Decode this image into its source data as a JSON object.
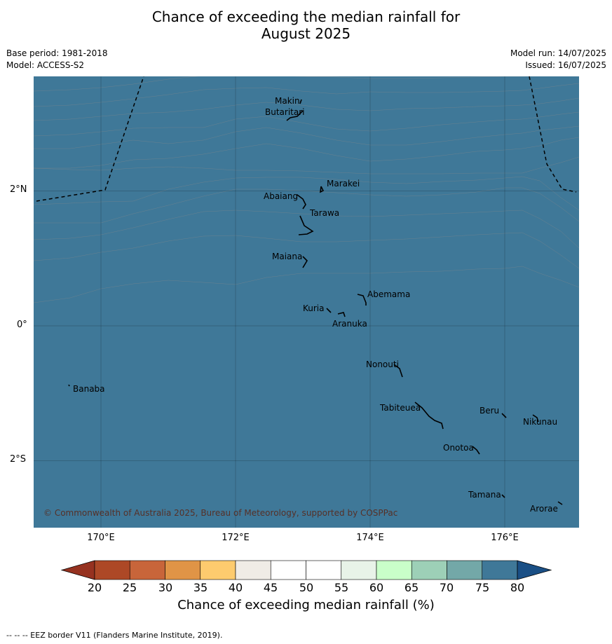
{
  "title": {
    "line1": "Chance of exceeding the median rainfall for",
    "line2": "August 2025"
  },
  "meta_left": {
    "base_period": "Base period: 1981-2018",
    "model": "Model: ACCESS-S2"
  },
  "meta_right": {
    "model_run": "Model run: 14/07/2025",
    "issued": "Issued: 16/07/2025"
  },
  "axes": {
    "lon_ticks": [
      "170°E",
      "172°E",
      "174°E",
      "176°E"
    ],
    "lat_ticks": [
      "2°N",
      "0°",
      "2°S"
    ]
  },
  "places": [
    {
      "name": "Makin",
      "lon": 172.99,
      "lat": 3.38
    },
    {
      "name": "Butaritari",
      "lon": 172.95,
      "lat": 3.07
    },
    {
      "name": "Marakei",
      "lon": 173.29,
      "lat": 2.0
    },
    {
      "name": "Abaiang",
      "lon": 173.0,
      "lat": 1.85
    },
    {
      "name": "Tarawa",
      "lon": 173.05,
      "lat": 1.42
    },
    {
      "name": "Maiana",
      "lon": 173.0,
      "lat": 0.93
    },
    {
      "name": "Abemama",
      "lon": 173.85,
      "lat": 0.4
    },
    {
      "name": "Kuria",
      "lon": 173.4,
      "lat": 0.23
    },
    {
      "name": "Aranuka",
      "lon": 173.6,
      "lat": 0.17
    },
    {
      "name": "Banaba",
      "lon": 169.55,
      "lat": -0.88
    },
    {
      "name": "Nonouti",
      "lon": 174.4,
      "lat": -0.66
    },
    {
      "name": "Tabiteuea",
      "lon": 174.8,
      "lat": -1.35
    },
    {
      "name": "Beru",
      "lon": 175.98,
      "lat": -1.33
    },
    {
      "name": "Nikunau",
      "lon": 176.45,
      "lat": -1.35
    },
    {
      "name": "Onotoa",
      "lon": 175.55,
      "lat": -1.8
    },
    {
      "name": "Tamana",
      "lon": 175.98,
      "lat": -2.5
    },
    {
      "name": "Arorae",
      "lon": 176.82,
      "lat": -2.65
    }
  ],
  "copyright": "© Commonwealth of Australia 2025, Bureau of Meteorology, supported by COSPPac",
  "colorbar": {
    "ticks": [
      "20",
      "25",
      "30",
      "35",
      "40",
      "45",
      "50",
      "55",
      "60",
      "65",
      "70",
      "75",
      "80"
    ],
    "colors": [
      "#ad4826",
      "#c8653a",
      "#e09446",
      "#fdcb6e",
      "#f0ece6",
      "#ffffff",
      "#ffffff",
      "#e8f3e8",
      "#c9ffc9",
      "#9dd0b7",
      "#73a8a8",
      "#3f7898"
    ],
    "under_color": "#963220",
    "over_color": "#1a4f85",
    "label": "Chance of exceeding median rainfall (%)"
  },
  "footer": "--  --  -- EEZ border V11 (Flanders Marine Institute, 2019)."
}
